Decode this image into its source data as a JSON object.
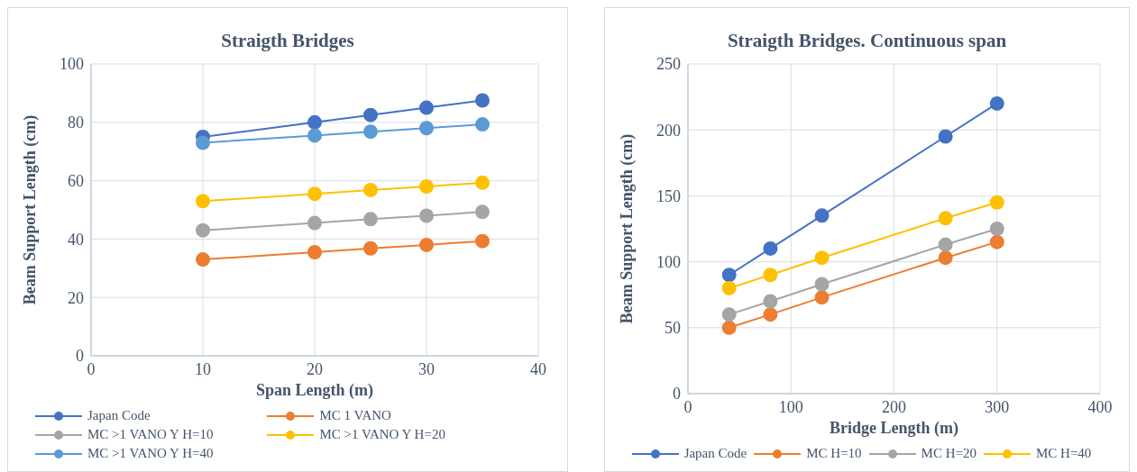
{
  "chart_data": [
    {
      "type": "line",
      "title": "Straigth Bridges",
      "xlabel": "Span Length (m)",
      "ylabel": "Beam Support Length (cm)",
      "x": [
        10,
        20,
        25,
        30,
        35
      ],
      "xlim": [
        0,
        40
      ],
      "xticks": [
        0,
        10,
        20,
        30,
        40
      ],
      "ylim": [
        0,
        100
      ],
      "yticks": [
        0,
        20,
        40,
        60,
        80,
        100
      ],
      "grid": true,
      "legend": "bottom",
      "marker": "circle",
      "line_style": "solid",
      "series": [
        {
          "name": "Japan Code",
          "color": "#4472c4",
          "values": [
            75,
            80,
            82.5,
            85,
            87.5
          ]
        },
        {
          "name": "MC 1 VANO",
          "color": "#ed7d31",
          "values": [
            33,
            35.5,
            36.8,
            38,
            39.3
          ]
        },
        {
          "name": "MC >1 VANO Y H=10",
          "color": "#a5a5a5",
          "values": [
            43,
            45.5,
            46.8,
            48,
            49.3
          ]
        },
        {
          "name": "MC >1 VANO Y H=20",
          "color": "#ffc000",
          "values": [
            53,
            55.5,
            56.8,
            58,
            59.3
          ]
        },
        {
          "name": "MC >1 VANO Y H=40",
          "color": "#5b9bd5",
          "values": [
            73,
            75.5,
            76.8,
            78,
            79.3
          ]
        }
      ]
    },
    {
      "type": "line",
      "title": "Straigth Bridges. Continuous span",
      "xlabel": "Bridge Length (m)",
      "ylabel": "Beam Support Length (cm)",
      "x": [
        40,
        80,
        130,
        250,
        300
      ],
      "xlim": [
        0,
        400
      ],
      "xticks": [
        0,
        100,
        200,
        300,
        400
      ],
      "ylim": [
        0,
        250
      ],
      "yticks": [
        0,
        50,
        100,
        150,
        200,
        250
      ],
      "grid": true,
      "legend": "bottom",
      "marker": "circle",
      "line_style": "solid",
      "series": [
        {
          "name": "Japan Code",
          "color": "#4472c4",
          "values": [
            90,
            110,
            135,
            195,
            220
          ]
        },
        {
          "name": "MC H=10",
          "color": "#ed7d31",
          "values": [
            50,
            60,
            73,
            103,
            115
          ]
        },
        {
          "name": "MC H=20",
          "color": "#a5a5a5",
          "values": [
            60,
            70,
            83,
            113,
            125
          ]
        },
        {
          "name": "MC H=40",
          "color": "#ffc000",
          "values": [
            80,
            90,
            103,
            133,
            145
          ]
        }
      ]
    }
  ]
}
